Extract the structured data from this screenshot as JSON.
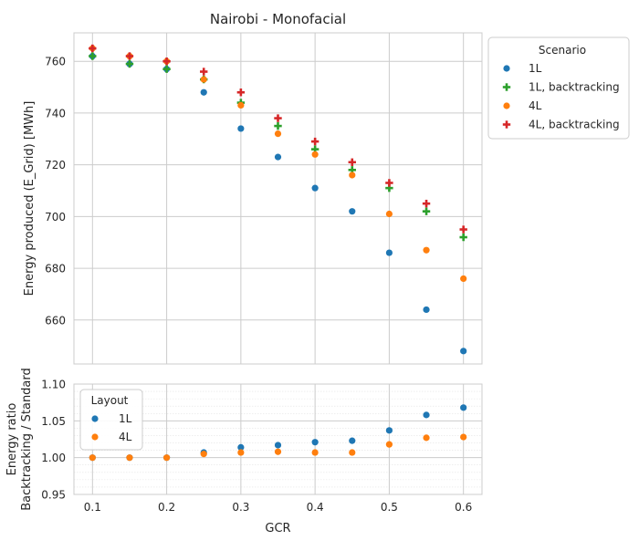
{
  "chart_data": [
    {
      "type": "scatter",
      "title": "Nairobi - Monofacial",
      "xlabel": "",
      "ylabel": "Energy produced (E_Grid) [MWh]",
      "x": [
        0.1,
        0.15,
        0.2,
        0.25,
        0.3,
        0.35,
        0.4,
        0.45,
        0.5,
        0.55,
        0.6
      ],
      "xlim": [
        0.075,
        0.625
      ],
      "ylim": [
        643,
        771
      ],
      "yticks": [
        660,
        680,
        700,
        720,
        740,
        760
      ],
      "grid": true,
      "legend": {
        "title": "Scenario",
        "placement": "outside-right",
        "entries": [
          "1L",
          "1L, backtracking",
          "4L",
          "4L, backtracking"
        ]
      },
      "series": [
        {
          "name": "1L",
          "marker": "circle",
          "color": "#1f77b4",
          "values": [
            762,
            759,
            757,
            748,
            734,
            723,
            711,
            702,
            686,
            664,
            648
          ]
        },
        {
          "name": "1L, backtracking",
          "marker": "plus",
          "color": "#2ca02c",
          "values": [
            762,
            759,
            757,
            753,
            744,
            735,
            726,
            718,
            711,
            702,
            692
          ]
        },
        {
          "name": "4L",
          "marker": "circle",
          "color": "#ff7f0e",
          "values": [
            765,
            762,
            760,
            753,
            743,
            732,
            724,
            716,
            701,
            687,
            676
          ]
        },
        {
          "name": "4L, backtracking",
          "marker": "plus",
          "color": "#d62728",
          "values": [
            765,
            762,
            760,
            756,
            748,
            738,
            729,
            721,
            713,
            705,
            695
          ]
        }
      ]
    },
    {
      "type": "scatter",
      "title": "",
      "xlabel": "GCR",
      "ylabel": "Energy ratio\nBacktracking / Standard",
      "x": [
        0.1,
        0.15,
        0.2,
        0.25,
        0.3,
        0.35,
        0.4,
        0.45,
        0.5,
        0.55,
        0.6
      ],
      "xticks": [
        0.1,
        0.2,
        0.3,
        0.4,
        0.5,
        0.6
      ],
      "xlim": [
        0.075,
        0.625
      ],
      "ylim": [
        0.95,
        1.1
      ],
      "yticks": [
        0.95,
        1.0,
        1.05,
        1.1
      ],
      "ytick_labels": [
        "0.95",
        "1.00",
        "1.05",
        "1.10"
      ],
      "grid": true,
      "minor_grid": true,
      "legend": {
        "title": "Layout",
        "placement": "top-left",
        "entries": [
          "1L",
          "4L"
        ]
      },
      "series": [
        {
          "name": "1L",
          "marker": "circle",
          "color": "#1f77b4",
          "values": [
            1.0,
            1.0,
            1.0,
            1.007,
            1.014,
            1.017,
            1.021,
            1.023,
            1.037,
            1.058,
            1.068
          ]
        },
        {
          "name": "4L",
          "marker": "circle",
          "color": "#ff7f0e",
          "values": [
            1.0,
            1.0,
            1.0,
            1.005,
            1.007,
            1.008,
            1.007,
            1.007,
            1.018,
            1.027,
            1.028
          ]
        }
      ]
    }
  ]
}
